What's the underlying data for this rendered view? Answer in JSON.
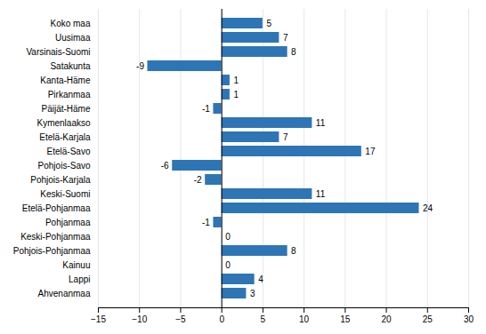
{
  "chart_data": {
    "type": "bar",
    "orientation": "horizontal",
    "categories": [
      "Koko maa",
      "Uusimaa",
      "Varsinais-Suomi",
      "Satakunta",
      "Kanta-Häme",
      "Pirkanmaa",
      "Päijät-Häme",
      "Kymenlaakso",
      "Etelä-Karjala",
      "Etelä-Savo",
      "Pohjois-Savo",
      "Pohjois-Karjala",
      "Keski-Suomi",
      "Etelä-Pohjanmaa",
      "Pohjanmaa",
      "Keski-Pohjanmaa",
      "Pohjois-Pohjanmaa",
      "Kainuu",
      "Lappi",
      "Ahvenanmaa"
    ],
    "values": [
      5,
      7,
      8,
      -9,
      1,
      1,
      -1,
      11,
      7,
      17,
      -6,
      -2,
      11,
      24,
      -1,
      0,
      8,
      0,
      4,
      3
    ],
    "color": "#2E75B6",
    "xlim": [
      -15,
      30
    ],
    "xticks": [
      -15,
      -10,
      -5,
      0,
      5,
      10,
      15,
      20,
      25,
      30
    ],
    "grid": true,
    "data_labels": true
  }
}
